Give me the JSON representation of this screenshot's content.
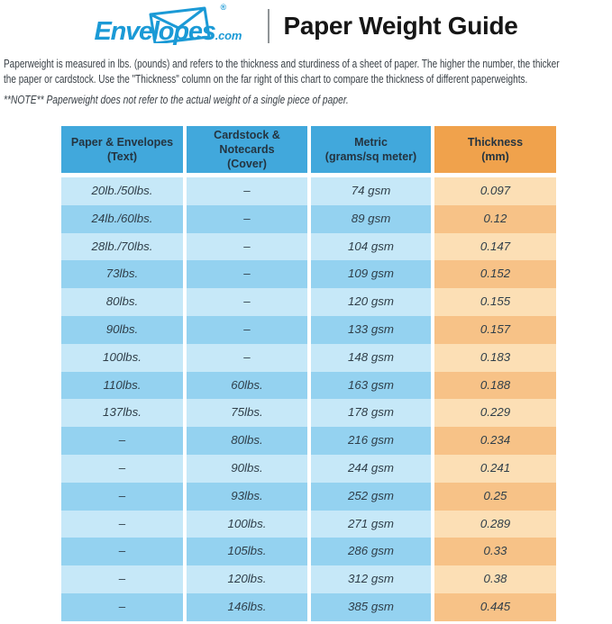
{
  "header": {
    "brand": "Envelopes",
    "brand_tld": ".com",
    "registered_mark": "®",
    "title": "Paper Weight Guide"
  },
  "intro": {
    "paragraph_lines": [
      "Paperweight is measured in lbs. (pounds) and refers to the thickness and sturdiness of a sheet of paper. The higher the number, the thicker",
      "the paper or cardstock. Use the \"Thickness\" column on the far right of this chart to compare the thickness of different paperweights."
    ],
    "note": "**NOTE** Paperweight does not refer to the actual weight of a single piece of paper."
  },
  "table": {
    "columns": [
      {
        "title": "Paper & Envelopes",
        "subtitle": "(Text)"
      },
      {
        "title": "Cardstock & Notecards",
        "subtitle": "(Cover)"
      },
      {
        "title": "Metric",
        "subtitle": "(grams/sq meter)"
      },
      {
        "title": "Thickness",
        "subtitle": "(mm)"
      }
    ],
    "rows": [
      [
        "20lb./50lbs.",
        "–",
        "74 gsm",
        "0.097"
      ],
      [
        "24lb./60lbs.",
        "–",
        "89 gsm",
        "0.12"
      ],
      [
        "28lb./70lbs.",
        "–",
        "104 gsm",
        "0.147"
      ],
      [
        "73lbs.",
        "–",
        "109 gsm",
        "0.152"
      ],
      [
        "80lbs.",
        "–",
        "120 gsm",
        "0.155"
      ],
      [
        "90lbs.",
        "–",
        "133 gsm",
        "0.157"
      ],
      [
        "100lbs.",
        "–",
        "148 gsm",
        "0.183"
      ],
      [
        "110lbs.",
        "60lbs.",
        "163 gsm",
        "0.188"
      ],
      [
        "137lbs.",
        "75lbs.",
        "178 gsm",
        "0.229"
      ],
      [
        "–",
        "80lbs.",
        "216 gsm",
        "0.234"
      ],
      [
        "–",
        "90lbs.",
        "244 gsm",
        "0.241"
      ],
      [
        "–",
        "93lbs.",
        "252 gsm",
        "0.25"
      ],
      [
        "–",
        "100lbs.",
        "271 gsm",
        "0.289"
      ],
      [
        "–",
        "105lbs.",
        "286 gsm",
        "0.33"
      ],
      [
        "–",
        "120lbs.",
        "312 gsm",
        "0.38"
      ],
      [
        "–",
        "146lbs.",
        "385 gsm",
        "0.445"
      ]
    ]
  },
  "chart_data": {
    "type": "table",
    "title": "Paper Weight Guide",
    "columns": [
      "Paper & Envelopes (Text)",
      "Cardstock & Notecards (Cover)",
      "Metric (grams/sq meter)",
      "Thickness (mm)"
    ],
    "rows": [
      [
        "20lb./50lbs.",
        null,
        74,
        0.097
      ],
      [
        "24lb./60lbs.",
        null,
        89,
        0.12
      ],
      [
        "28lb./70lbs.",
        null,
        104,
        0.147
      ],
      [
        "73lbs.",
        null,
        109,
        0.152
      ],
      [
        "80lbs.",
        null,
        120,
        0.155
      ],
      [
        "90lbs.",
        null,
        133,
        0.157
      ],
      [
        "100lbs.",
        null,
        148,
        0.183
      ],
      [
        "110lbs.",
        "60lbs.",
        163,
        0.188
      ],
      [
        "137lbs.",
        "75lbs.",
        178,
        0.229
      ],
      [
        null,
        "80lbs.",
        216,
        0.234
      ],
      [
        null,
        "90lbs.",
        244,
        0.241
      ],
      [
        null,
        "93lbs.",
        252,
        0.25
      ],
      [
        null,
        "100lbs.",
        271,
        0.289
      ],
      [
        null,
        "105lbs.",
        286,
        0.33
      ],
      [
        null,
        "120lbs.",
        312,
        0.38
      ],
      [
        null,
        "146lbs.",
        385,
        0.445
      ]
    ],
    "metric_unit": "gsm",
    "thickness_unit": "mm"
  },
  "theme": {
    "brand-blue": "#1b9ad6",
    "title-text": "#161616",
    "body-text": "#3a4147",
    "divider-gray": "#8f9497",
    "header-blue": "#41a8dc",
    "header-orange": "#f0a24c",
    "header-text": "#243440",
    "cell-text": "#2f3e49",
    "row-blue-light": "#c6e8f8",
    "row-blue-dark": "#94d2f0",
    "row-orange-light": "#fcdfb5",
    "row-orange-dark": "#f7c287"
  }
}
